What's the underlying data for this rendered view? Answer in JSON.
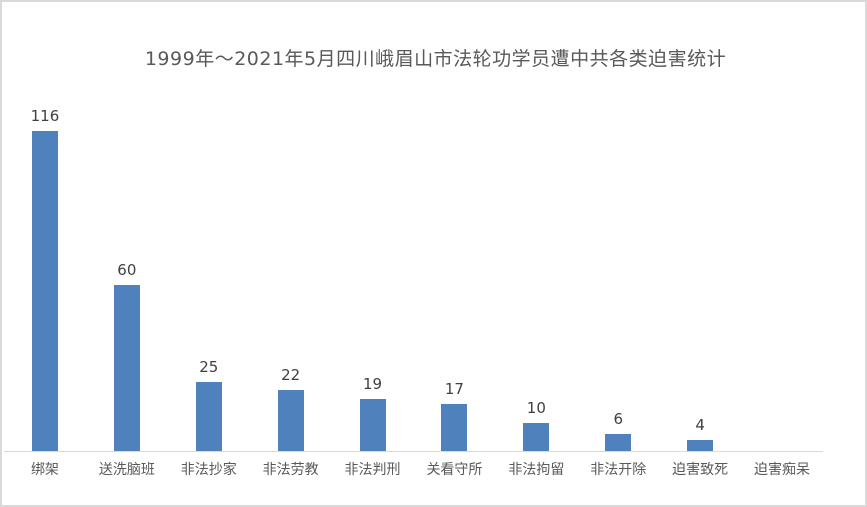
{
  "chart_data": {
    "type": "bar",
    "title": "1999年～2021年5月四川峨眉山市法轮功学员遭中共各类迫害统计",
    "categories": [
      "绑架",
      "送洗脑班",
      "非法抄家",
      "非法劳教",
      "非法判刑",
      "关看守所",
      "非法拘留",
      "非法开除",
      "迫害致死",
      "迫害痴呆"
    ],
    "values": [
      116,
      60,
      25,
      22,
      19,
      17,
      10,
      6,
      4,
      null
    ],
    "data_labels": [
      "116",
      "60",
      "25",
      "22",
      "19",
      "17",
      "10",
      "6",
      "4",
      ""
    ],
    "xlabel": "",
    "ylabel": "",
    "ylim": [
      0,
      120
    ],
    "grid": false,
    "legend": false,
    "y_axis_visible": false,
    "colors": {
      "bar": "#4f81bd",
      "title": "#595959",
      "value_label": "#404040",
      "category_label": "#595959",
      "axis_line": "#d9d9d9",
      "frame_border": "#d9d9d9",
      "background": "#ffffff"
    }
  }
}
